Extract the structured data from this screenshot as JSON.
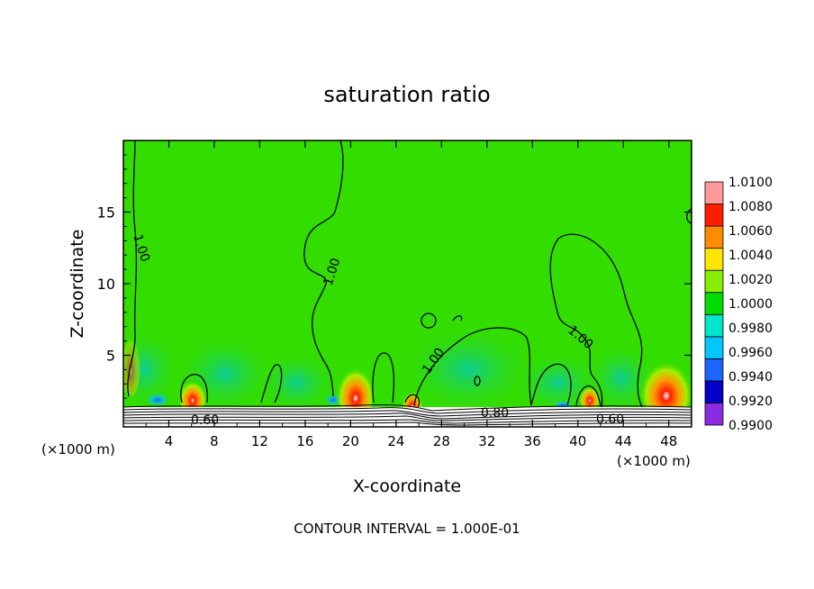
{
  "chart_data": {
    "type": "heatmap",
    "title": "saturation ratio",
    "xlabel": "X-coordinate",
    "ylabel": "Z-coordinate",
    "x_unit": "(×1000 m)",
    "x_unit_right": "(×1000 m)",
    "xlim": [
      0,
      50
    ],
    "ylim": [
      0,
      20
    ],
    "x_ticks": [
      "4",
      "8",
      "12",
      "16",
      "20",
      "24",
      "28",
      "32",
      "36",
      "40",
      "44",
      "48"
    ],
    "y_ticks": [
      "5",
      "10",
      "15"
    ],
    "footer": "CONTOUR INTERVAL = 1.000E-01",
    "contour_labels": [
      "1.00",
      "1.00",
      "1.00",
      "1.00",
      "0.60",
      "0.80",
      "0.60"
    ],
    "colorbar": {
      "labels": [
        "1.0100",
        "1.0080",
        "1.0060",
        "1.0040",
        "1.0020",
        "1.0000",
        "0.9980",
        "0.9960",
        "0.9940",
        "0.9920",
        "0.9900"
      ],
      "colors": [
        "#8a2be2",
        "#0000c8",
        "#1e64ff",
        "#00c8ff",
        "#00e6c8",
        "#00dd00",
        "#88ee00",
        "#ffe600",
        "#ff8c00",
        "#ff1e00",
        "#ff9a9a"
      ]
    }
  }
}
